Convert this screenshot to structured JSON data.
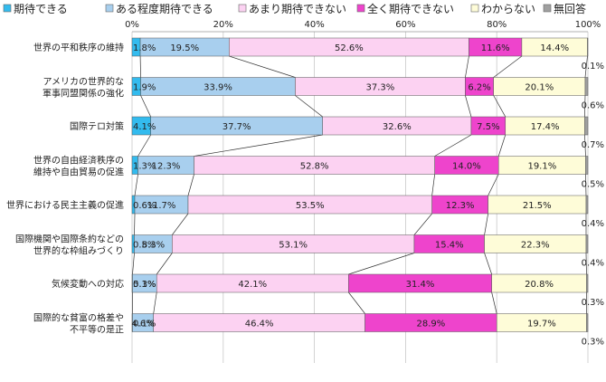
{
  "chart_data": {
    "type": "bar",
    "orientation": "horizontal",
    "stacked": true,
    "percent_stacked": true,
    "legend_position": "top",
    "grid": true,
    "xlim": [
      0,
      100
    ],
    "xticks": [
      "0%",
      "20%",
      "40%",
      "60%",
      "80%",
      "100%"
    ],
    "categories": [
      "世界の平和秩序の維持",
      "アメリカの世界的な\n軍事同盟関係の強化",
      "国際テロ対策",
      "世界の自由経済秩序の\n維持や自由貿易の促進",
      "世界における民主主義の促進",
      "国際機関や国際条約などの\n世界的な枠組みづくり",
      "気候変動への対応",
      "国際的な貧富の格差や\n不平等の是正"
    ],
    "series": [
      {
        "name": "期待できる",
        "color": "#33bbee",
        "values": [
          1.8,
          1.9,
          4.1,
          1.3,
          0.6,
          0.5,
          0.1,
          0.1
        ]
      },
      {
        "name": "ある程度期待できる",
        "color": "#a8cfee",
        "values": [
          19.5,
          33.9,
          37.7,
          12.3,
          11.7,
          8.3,
          5.3,
          4.6
        ]
      },
      {
        "name": "あまり期待できない",
        "color": "#fcd2f2",
        "values": [
          52.6,
          37.3,
          32.6,
          52.8,
          53.5,
          53.1,
          42.1,
          46.4
        ]
      },
      {
        "name": "全く期待できない",
        "color": "#ee44cc",
        "values": [
          11.6,
          6.2,
          7.5,
          14.0,
          12.3,
          15.4,
          31.4,
          28.9
        ]
      },
      {
        "name": "わからない",
        "color": "#fefcd8",
        "values": [
          14.4,
          20.1,
          17.4,
          19.1,
          21.5,
          22.3,
          20.8,
          19.7
        ]
      },
      {
        "name": "無回答",
        "color": "#a0a0a0",
        "values": [
          0.1,
          0.6,
          0.7,
          0.5,
          0.4,
          0.4,
          0.3,
          0.3
        ]
      }
    ],
    "value_labels": [
      [
        "1.8%",
        "19.5%",
        "52.6%",
        "11.6%",
        "14.4%",
        "0.1%"
      ],
      [
        "1.9%",
        "33.9%",
        "37.3%",
        "6.2%",
        "20.1%",
        "0.6%"
      ],
      [
        "4.1%",
        "37.7%",
        "32.6%",
        "7.5%",
        "17.4%",
        "0.7%"
      ],
      [
        "1.3%",
        "12.3%",
        "52.8%",
        "14.0%",
        "19.1%",
        "0.5%"
      ],
      [
        "0.6%",
        "11.7%",
        "53.5%",
        "12.3%",
        "21.5%",
        "0.4%"
      ],
      [
        "0.5%",
        "8.3%",
        "53.1%",
        "15.4%",
        "22.3%",
        "0.4%"
      ],
      [
        "0.1%",
        "5.3%",
        "42.1%",
        "31.4%",
        "20.8%",
        "0.3%"
      ],
      [
        "0.1%",
        "4.6%",
        "46.4%",
        "28.9%",
        "19.7%",
        "0.3%"
      ]
    ],
    "connector_lines": true
  }
}
